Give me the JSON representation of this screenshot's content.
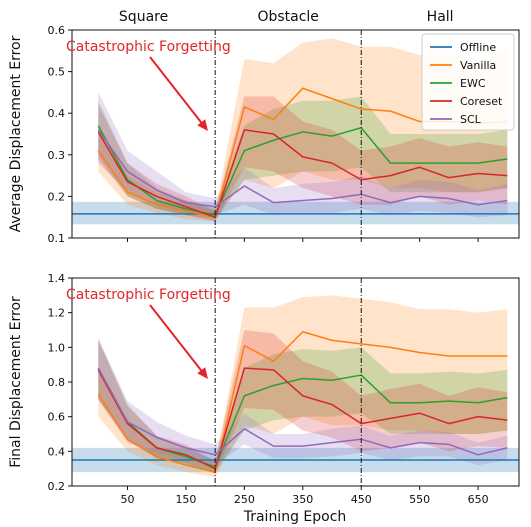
{
  "chart_data": [
    {
      "type": "line",
      "ylabel": "Average Displacement Error",
      "ylim": [
        0.1,
        0.6
      ],
      "yticks": [
        "0.1",
        "0.2",
        "0.3",
        "0.4",
        "0.5",
        "0.6"
      ],
      "phases": [
        "Square",
        "Obstacle",
        "Hall"
      ],
      "annotation": "Catastrophic Forgetting",
      "x": [
        0,
        50,
        100,
        150,
        200,
        250,
        300,
        350,
        400,
        450,
        500,
        550,
        600,
        650,
        700
      ],
      "offline": {
        "name": "Offline",
        "value": 0.158,
        "band": [
          0.133,
          0.187
        ]
      },
      "series": [
        {
          "name": "Vanilla",
          "values": [
            0.31,
            0.21,
            0.18,
            0.165,
            0.15,
            0.415,
            0.385,
            0.46,
            0.435,
            0.41,
            0.405,
            0.38,
            0.38,
            0.375,
            0.38
          ],
          "lower": [
            0.26,
            0.18,
            0.16,
            0.145,
            0.14,
            0.24,
            0.22,
            0.26,
            0.24,
            0.24,
            0.22,
            0.22,
            0.21,
            0.21,
            0.22
          ],
          "upper": [
            0.36,
            0.25,
            0.21,
            0.19,
            0.165,
            0.53,
            0.52,
            0.57,
            0.58,
            0.56,
            0.56,
            0.54,
            0.54,
            0.53,
            0.55
          ]
        },
        {
          "name": "EWC",
          "values": [
            0.37,
            0.24,
            0.19,
            0.17,
            0.155,
            0.31,
            0.335,
            0.355,
            0.345,
            0.365,
            0.28,
            0.28,
            0.28,
            0.28,
            0.29
          ],
          "lower": [
            0.3,
            0.2,
            0.17,
            0.155,
            0.145,
            0.24,
            0.25,
            0.26,
            0.26,
            0.27,
            0.21,
            0.21,
            0.21,
            0.21,
            0.22
          ],
          "upper": [
            0.43,
            0.28,
            0.22,
            0.19,
            0.17,
            0.37,
            0.41,
            0.43,
            0.43,
            0.44,
            0.35,
            0.35,
            0.35,
            0.35,
            0.36
          ]
        },
        {
          "name": "Coreset",
          "values": [
            0.355,
            0.235,
            0.2,
            0.175,
            0.15,
            0.36,
            0.35,
            0.295,
            0.28,
            0.24,
            0.25,
            0.27,
            0.245,
            0.255,
            0.25
          ],
          "lower": [
            0.29,
            0.2,
            0.17,
            0.155,
            0.14,
            0.27,
            0.26,
            0.22,
            0.2,
            0.18,
            0.18,
            0.2,
            0.18,
            0.19,
            0.18
          ],
          "upper": [
            0.42,
            0.28,
            0.23,
            0.2,
            0.165,
            0.44,
            0.44,
            0.38,
            0.36,
            0.31,
            0.32,
            0.34,
            0.32,
            0.33,
            0.32
          ]
        },
        {
          "name": "SCL",
          "values": [
            0.36,
            0.26,
            0.215,
            0.185,
            0.175,
            0.225,
            0.185,
            0.19,
            0.195,
            0.205,
            0.185,
            0.2,
            0.195,
            0.18,
            0.19
          ],
          "lower": [
            0.28,
            0.21,
            0.18,
            0.16,
            0.155,
            0.18,
            0.155,
            0.16,
            0.16,
            0.17,
            0.155,
            0.165,
            0.16,
            0.15,
            0.155
          ],
          "upper": [
            0.45,
            0.31,
            0.26,
            0.21,
            0.195,
            0.27,
            0.22,
            0.23,
            0.235,
            0.25,
            0.22,
            0.24,
            0.235,
            0.215,
            0.23
          ]
        }
      ]
    },
    {
      "type": "line",
      "xlabel": "Training Epoch",
      "ylabel": "Final Displacement Error",
      "ylim": [
        0.2,
        1.4
      ],
      "yticks": [
        "0.2",
        "0.4",
        "0.6",
        "0.8",
        "1.0",
        "1.2",
        "1.4"
      ],
      "xticks": [
        "50",
        "150",
        "250",
        "350",
        "450",
        "550",
        "650"
      ],
      "annotation": "Catastrophic Forgetting",
      "x": [
        0,
        50,
        100,
        150,
        200,
        250,
        300,
        350,
        400,
        450,
        500,
        550,
        600,
        650,
        700
      ],
      "offline": {
        "value": 0.35,
        "band": [
          0.28,
          0.42
        ]
      },
      "series": [
        {
          "name": "Vanilla",
          "values": [
            0.73,
            0.47,
            0.37,
            0.32,
            0.28,
            1.01,
            0.92,
            1.09,
            1.04,
            1.02,
            1.0,
            0.97,
            0.95,
            0.95,
            0.95
          ],
          "lower": [
            0.6,
            0.4,
            0.32,
            0.28,
            0.25,
            0.55,
            0.5,
            0.6,
            0.55,
            0.55,
            0.52,
            0.52,
            0.5,
            0.5,
            0.52
          ],
          "upper": [
            0.86,
            0.56,
            0.43,
            0.37,
            0.32,
            1.23,
            1.23,
            1.29,
            1.3,
            1.28,
            1.26,
            1.22,
            1.22,
            1.2,
            1.22
          ]
        },
        {
          "name": "EWC",
          "values": [
            0.88,
            0.57,
            0.42,
            0.37,
            0.31,
            0.72,
            0.78,
            0.82,
            0.81,
            0.84,
            0.68,
            0.68,
            0.69,
            0.68,
            0.71
          ],
          "lower": [
            0.7,
            0.47,
            0.36,
            0.32,
            0.28,
            0.52,
            0.58,
            0.6,
            0.6,
            0.62,
            0.5,
            0.5,
            0.5,
            0.5,
            0.52
          ],
          "upper": [
            1.05,
            0.67,
            0.49,
            0.42,
            0.35,
            0.88,
            0.96,
            0.99,
            0.98,
            1.0,
            0.85,
            0.85,
            0.86,
            0.85,
            0.87
          ]
        },
        {
          "name": "Coreset",
          "values": [
            0.87,
            0.56,
            0.42,
            0.38,
            0.3,
            0.88,
            0.87,
            0.72,
            0.67,
            0.56,
            0.59,
            0.62,
            0.56,
            0.6,
            0.58
          ],
          "lower": [
            0.7,
            0.46,
            0.36,
            0.33,
            0.27,
            0.65,
            0.64,
            0.52,
            0.48,
            0.4,
            0.42,
            0.45,
            0.4,
            0.43,
            0.42
          ],
          "upper": [
            1.04,
            0.66,
            0.49,
            0.44,
            0.34,
            1.1,
            1.08,
            0.92,
            0.86,
            0.72,
            0.76,
            0.79,
            0.72,
            0.77,
            0.74
          ]
        },
        {
          "name": "SCL",
          "values": [
            0.88,
            0.57,
            0.48,
            0.42,
            0.38,
            0.53,
            0.43,
            0.43,
            0.45,
            0.47,
            0.42,
            0.45,
            0.44,
            0.38,
            0.42
          ],
          "lower": [
            0.7,
            0.45,
            0.39,
            0.35,
            0.32,
            0.44,
            0.36,
            0.36,
            0.37,
            0.39,
            0.35,
            0.37,
            0.37,
            0.32,
            0.35
          ],
          "upper": [
            1.05,
            0.69,
            0.57,
            0.49,
            0.44,
            0.62,
            0.5,
            0.5,
            0.53,
            0.55,
            0.49,
            0.52,
            0.51,
            0.45,
            0.49
          ]
        }
      ]
    }
  ],
  "colors": {
    "Offline": "#1f77b4",
    "Vanilla": "#ff7f0e",
    "EWC": "#2ca02c",
    "Coreset": "#d62728",
    "SCL": "#9467bd",
    "arrow": "#e3262b"
  },
  "x_domain": [
    -45,
    720
  ],
  "task_boundaries": [
    200,
    450
  ]
}
